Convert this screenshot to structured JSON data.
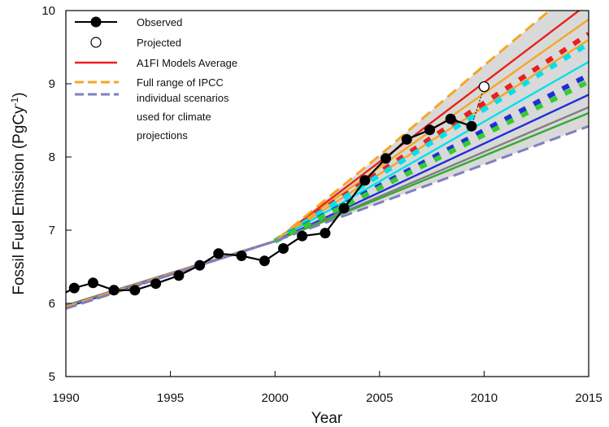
{
  "chart_data": {
    "type": "line",
    "xlabel": "Year",
    "ylabel": "Fossil Fuel Emission (PgCy",
    "ylabel_sup": "-1",
    "ylabel_end": ")",
    "xlim": [
      1990,
      2015
    ],
    "ylim": [
      5,
      10
    ],
    "xticks": [
      1990,
      1995,
      2000,
      2005,
      2010,
      2015
    ],
    "yticks": [
      5,
      6,
      7,
      8,
      9,
      10
    ],
    "legend": {
      "position": "top-left",
      "entries": [
        {
          "label": "Observed",
          "style": "line-filled-marker",
          "color": "#000000"
        },
        {
          "label": "Projected",
          "style": "open-marker",
          "color": "#000000"
        },
        {
          "label": "A1FI Models Average",
          "style": "solid",
          "color": "#e8211c"
        },
        {
          "label": "Full range of IPCC",
          "style": "dashed-pair",
          "colors": [
            "#f5a623",
            "#7f7fbf"
          ]
        },
        {
          "label": "individual  scenarios",
          "style": "none"
        },
        {
          "label": "used for climate",
          "style": "none"
        },
        {
          "label": "projections",
          "style": "none"
        }
      ]
    },
    "observed": {
      "x": [
        1990,
        1990.4,
        1991.3,
        1992.3,
        1993.3,
        1994.3,
        1995.4,
        1996.4,
        1997.3,
        1998.4,
        1999.5,
        2000.4,
        2001.3,
        2002.4,
        2003.3,
        2004.3,
        2005.3,
        2006.3,
        2007.4,
        2008.4,
        2009.4
      ],
      "y": [
        6.15,
        6.21,
        6.28,
        6.18,
        6.18,
        6.27,
        6.38,
        6.52,
        6.68,
        6.65,
        6.58,
        6.75,
        6.92,
        6.96,
        7.3,
        7.68,
        7.98,
        8.24,
        8.37,
        8.52,
        8.42
      ],
      "color": "#000000"
    },
    "projected": {
      "x": [
        2010
      ],
      "y": [
        8.96
      ],
      "link_from": [
        2009.4,
        8.42
      ],
      "color": "#000000"
    },
    "ipcc_range": {
      "fill": "#d9d9d9",
      "upper": {
        "x": [
          1990,
          2000,
          2005,
          2010,
          2015
        ],
        "y": [
          5.95,
          6.85,
          8.02,
          9.25,
          10.45
        ],
        "color": "#f5a623"
      },
      "lower": {
        "x": [
          1990,
          2000,
          2015
        ],
        "y": [
          5.93,
          6.85,
          8.42
        ],
        "color": "#7f7fbf"
      }
    },
    "scenarios": [
      {
        "style": "solid",
        "color": "#e8211c",
        "x": [
          2000,
          2015
        ],
        "y": [
          6.85,
          10.1
        ]
      },
      {
        "style": "solid",
        "color": "#f5a623",
        "x": [
          2000,
          2015
        ],
        "y": [
          6.85,
          9.88
        ]
      },
      {
        "style": "solid",
        "color": "#f5a623",
        "x": [
          2000,
          2015
        ],
        "y": [
          6.85,
          9.6
        ]
      },
      {
        "style": "solid",
        "color": "#00e0ea",
        "x": [
          2000,
          2015
        ],
        "y": [
          6.85,
          9.3
        ]
      },
      {
        "style": "solid",
        "color": "#1f2fd8",
        "x": [
          2000,
          2015
        ],
        "y": [
          6.85,
          8.85
        ]
      },
      {
        "style": "solid",
        "color": "#7f7f7f",
        "x": [
          2000,
          2015
        ],
        "y": [
          6.85,
          8.68
        ]
      },
      {
        "style": "solid",
        "color": "#33aa33",
        "x": [
          2000,
          2015
        ],
        "y": [
          6.85,
          8.6
        ]
      },
      {
        "style": "dotted",
        "color": "#e8211c",
        "x": [
          2000,
          2015
        ],
        "y": [
          6.85,
          9.68
        ]
      },
      {
        "style": "dotted",
        "color": "#00e0ea",
        "x": [
          2000,
          2015
        ],
        "y": [
          6.85,
          9.55
        ]
      },
      {
        "style": "dotted",
        "color": "#1f2fd8",
        "x": [
          2000,
          2015
        ],
        "y": [
          6.85,
          9.12
        ]
      },
      {
        "style": "dotted",
        "color": "#33cc33",
        "x": [
          2000,
          2015
        ],
        "y": [
          6.85,
          9.03
        ]
      }
    ],
    "pre2000_lines": [
      {
        "style": "solid",
        "color": "#1f2fd8",
        "x": [
          1990,
          2000
        ],
        "y": [
          5.95,
          6.85
        ]
      },
      {
        "style": "solid",
        "color": "#7f7f7f",
        "x": [
          1990,
          2000
        ],
        "y": [
          5.97,
          6.85
        ]
      },
      {
        "style": "dashed",
        "color": "#7f7fbf",
        "x": [
          1990,
          2000
        ],
        "y": [
          5.93,
          6.85
        ]
      }
    ]
  }
}
